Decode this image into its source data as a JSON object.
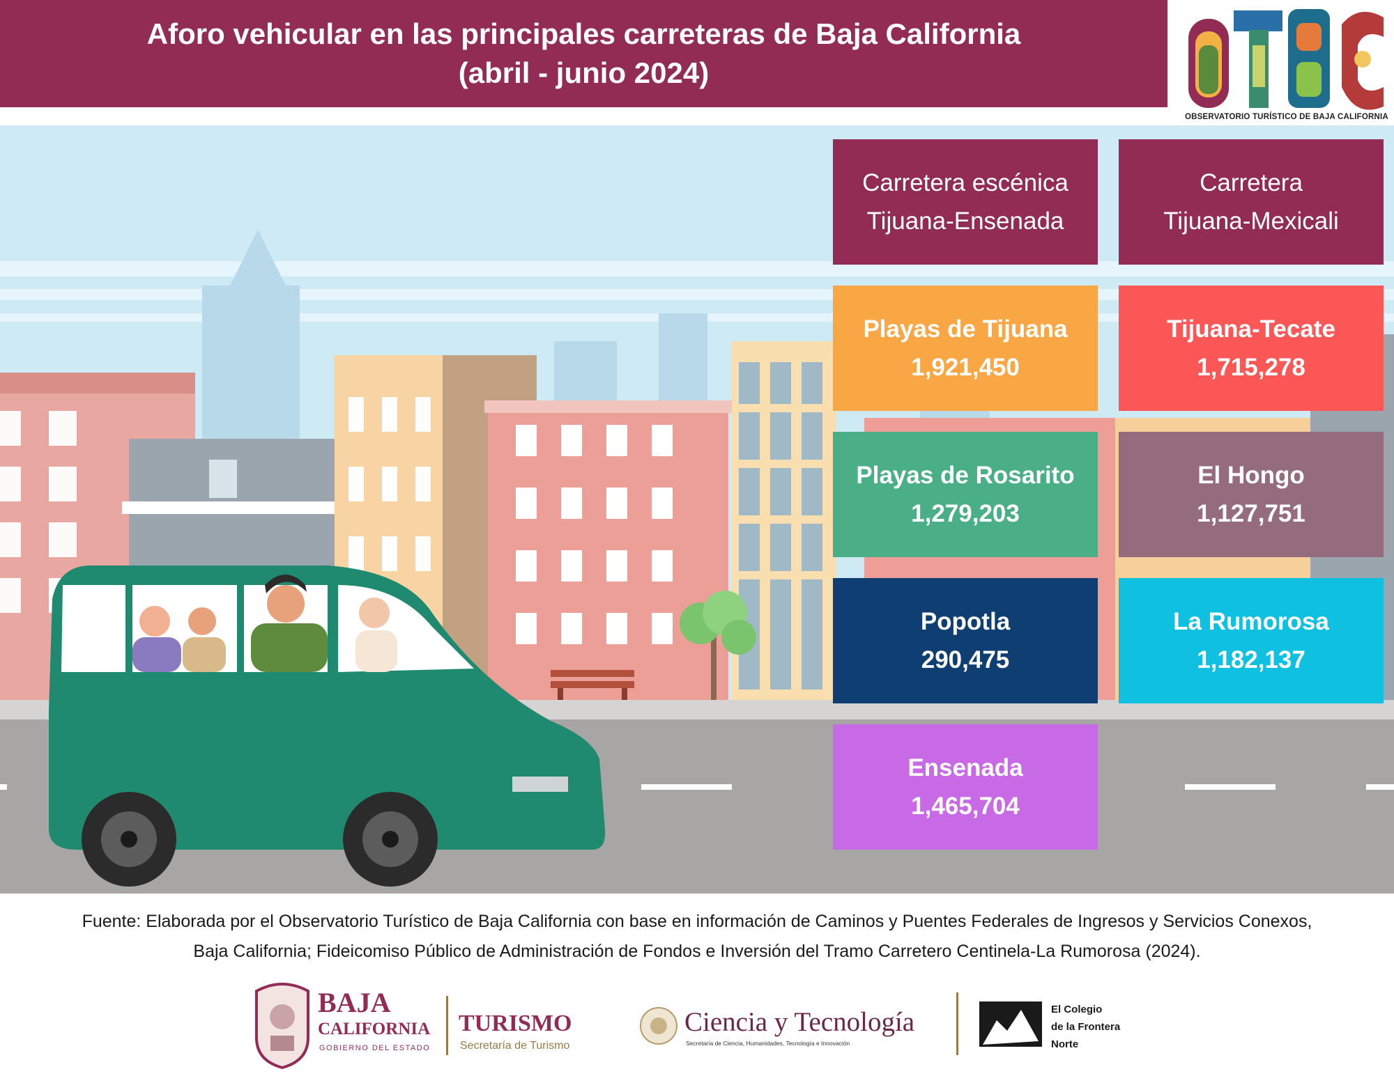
{
  "header": {
    "title_line1": "Aforo vehicular en las principales carreteras de Baja California",
    "title_line2": "(abril - junio 2024)"
  },
  "logo_otbc": {
    "letters": "OTBC",
    "caption": "OBSERVATORIO TURÍSTICO DE BAJA CALIFORNIA"
  },
  "columns": [
    {
      "header_line1": "Carretera escénica",
      "header_line2": "Tijuana-Ensenada",
      "items": [
        {
          "name": "Playas de Tijuana",
          "value": "1,921,450",
          "color": "#f9a744"
        },
        {
          "name": "Playas de Rosarito",
          "value": "1,279,203",
          "color": "#4aaf86"
        },
        {
          "name": "Popotla",
          "value": "290,475",
          "color": "#0f3f72"
        },
        {
          "name": "Ensenada",
          "value": "1,465,704",
          "color": "#c86ae5"
        }
      ]
    },
    {
      "header_line1": "Carretera",
      "header_line2": "Tijuana-Mexicali",
      "items": [
        {
          "name": "Tijuana-Tecate",
          "value": "1,715,278",
          "color": "#fc5757"
        },
        {
          "name": "El Hongo",
          "value": "1,127,751",
          "color": "#956c7e"
        },
        {
          "name": "La Rumorosa",
          "value": "1,182,137",
          "color": "#0fc0e0"
        }
      ]
    }
  ],
  "source": {
    "line1": "Fuente: Elaborada por el Observatorio Turístico de Baja California con base en información de Caminos y Puentes Federales de Ingresos y Servicios Conexos,",
    "line2": "Baja California; Fideicomiso Público de Administración de Fondos e Inversión del Tramo Carretero Centinela-La Rumorosa (2024)."
  },
  "footer_logos": {
    "bc_line1": "BAJA",
    "bc_line2": "CALIFORNIA",
    "bc_line3": "GOBIERNO DEL ESTADO",
    "turismo": "TURISMO",
    "turismo_sub": "Secretaría de Turismo",
    "ciencia": "Ciencia y Tecnología",
    "ciencia_sub": "Secretaría de Ciencia, Humanidades, Tecnología e Innovación",
    "colef_line1": "El Colegio",
    "colef_line2": "de la Frontera",
    "colef_line3": "Norte"
  },
  "colors": {
    "brand": "#922c55",
    "sky": "#cdeaf5",
    "road": "#a8a6a5",
    "van": "#1f8a70"
  }
}
